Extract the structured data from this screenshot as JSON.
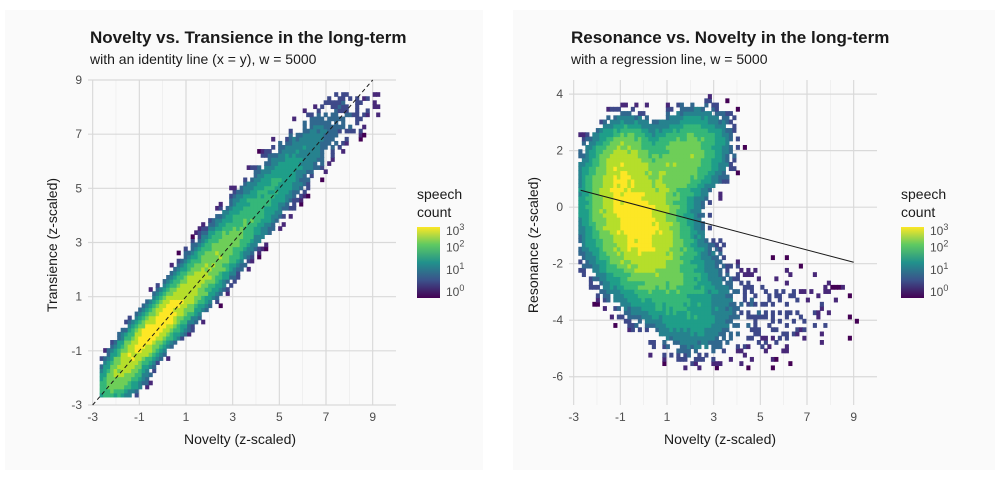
{
  "chart_data": [
    {
      "type": "heatmap",
      "title": "Novelty vs. Transience in the long-term",
      "subtitle": "with an identity line (x = y), w = 5000",
      "xlabel": "Novelty (z-scaled)",
      "ylabel": "Transience (z-scaled)",
      "xlim": [
        -3.2,
        10
      ],
      "ylim": [
        -3,
        9
      ],
      "x_ticks": [
        "-3",
        "-1",
        "1",
        "3",
        "5",
        "7",
        "9"
      ],
      "y_ticks": [
        "-3",
        "-1",
        "1",
        "3",
        "5",
        "7",
        "9"
      ],
      "reference_line": {
        "type": "identity",
        "label": "x = y",
        "style": "dashed"
      },
      "density": "joint distribution concentrated along x = y, peak near (-0.5, 0), spreading to (9, 8)",
      "legend": {
        "title_line1": "speech",
        "title_line2": "count",
        "scale": "log10",
        "labels": [
          "3",
          "2",
          "1",
          "0"
        ]
      },
      "colors": {
        "low": "#440154",
        "mid": "#21918c",
        "high": "#fde725"
      }
    },
    {
      "type": "heatmap",
      "title": "Resonance vs. Novelty in the long-term",
      "subtitle": "with a regression line, w = 5000",
      "xlabel": "Novelty (z-scaled)",
      "ylabel": "Resonance (z-scaled)",
      "xlim": [
        -3.2,
        10
      ],
      "ylim": [
        -7,
        4.5
      ],
      "x_ticks": [
        "-3",
        "-1",
        "1",
        "3",
        "5",
        "7",
        "9"
      ],
      "y_ticks": [
        "4",
        "2",
        "0",
        "-2",
        "-4",
        "-6"
      ],
      "regression_line": {
        "x": [
          -2.7,
          9.0
        ],
        "y": [
          0.6,
          -1.95
        ]
      },
      "density": "heart-shaped mass, peak near (-0.3, -0.3), lobes near (-1, 2) and (2, 2.5), sparse tail to lower-right",
      "legend": {
        "title_line1": "speech",
        "title_line2": "count",
        "scale": "log10",
        "labels": [
          "3",
          "2",
          "1",
          "0"
        ]
      },
      "colors": {
        "low": "#440154",
        "mid": "#21918c",
        "high": "#fde725"
      }
    }
  ]
}
